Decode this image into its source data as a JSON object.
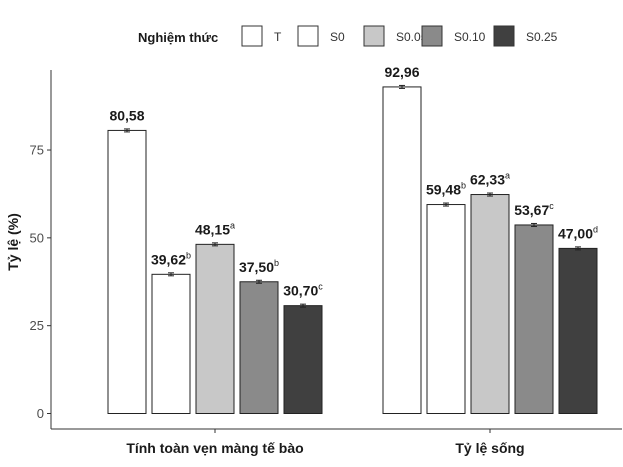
{
  "chart_data": {
    "type": "bar",
    "title": "",
    "xlabel": "",
    "ylabel": "Tỷ lệ (%)",
    "ylim": [
      0,
      100
    ],
    "yticks": [
      "0",
      "25",
      "50",
      "75"
    ],
    "legend": {
      "title": "Nghiệm thức",
      "position": "top"
    },
    "categories": [
      "Tính toàn vẹn màng tế bào",
      "Tỷ lệ sống"
    ],
    "series": [
      {
        "name": "T",
        "color": "#ffffff",
        "values": [
          80.58,
          92.96
        ],
        "labels": [
          "80,58",
          "92,96"
        ],
        "sig": [
          "",
          ""
        ]
      },
      {
        "name": "S0",
        "color": "#ffffff",
        "values": [
          39.62,
          59.48
        ],
        "labels": [
          "39,62",
          "59,48"
        ],
        "sig": [
          "b",
          "b"
        ]
      },
      {
        "name": "S0.05",
        "color": "#c8c8c8",
        "values": [
          48.15,
          62.33
        ],
        "labels": [
          "48,15",
          "62,33"
        ],
        "sig": [
          "a",
          "a"
        ]
      },
      {
        "name": "S0.10",
        "color": "#8a8a8a",
        "values": [
          37.5,
          53.67
        ],
        "labels": [
          "37,50",
          "53,67"
        ],
        "sig": [
          "b",
          "c"
        ]
      },
      {
        "name": "S0.25",
        "color": "#404040",
        "values": [
          30.7,
          47.0
        ],
        "labels": [
          "30,70",
          "47,00"
        ],
        "sig": [
          "c",
          "d"
        ]
      }
    ],
    "error_bars": true,
    "grid": false
  }
}
